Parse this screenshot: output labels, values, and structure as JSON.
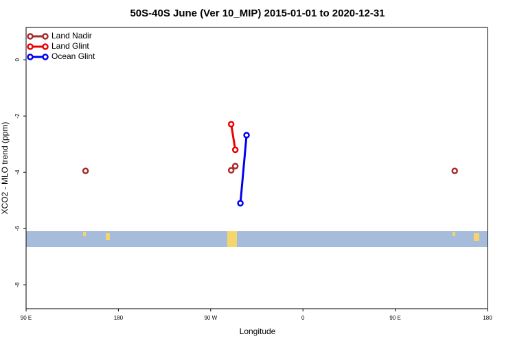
{
  "chart_data": {
    "type": "line",
    "title": "50S-40S June (Ver 10_MIP)   2015-01-01 to 2020-12-31",
    "x_label": "Longitude",
    "y_label": "XCO2 - MLO trend (ppm)",
    "xlim": [
      90,
      540
    ],
    "ylim": [
      -8.85,
      1.15
    ],
    "xticks": [
      {
        "value": 90,
        "label": "90 E"
      },
      180,
      {
        "value": 270,
        "label": "90 W"
      },
      {
        "value": 360,
        "label": "0"
      },
      {
        "value": 450,
        "label": "90 E"
      },
      {
        "value": 540,
        "label": "180"
      }
    ],
    "yticks": [
      0,
      -2,
      -4,
      -6,
      -8
    ],
    "legend": "top-left",
    "series": [
      {
        "name": "Land Nadir",
        "color": "#a52a2a",
        "x": [
          148,
          null,
          290,
          294,
          null,
          508
        ],
        "values": [
          -3.95,
          null,
          -3.93,
          -3.78,
          null,
          -3.95
        ]
      },
      {
        "name": "Land Glint",
        "color": "#ee0000",
        "x": [
          290,
          294
        ],
        "values": [
          -2.29,
          -3.2
        ]
      },
      {
        "name": "Ocean Glint",
        "color": "#0000ee",
        "x": [
          305,
          299
        ],
        "values": [
          -2.68,
          -5.1
        ]
      }
    ]
  }
}
